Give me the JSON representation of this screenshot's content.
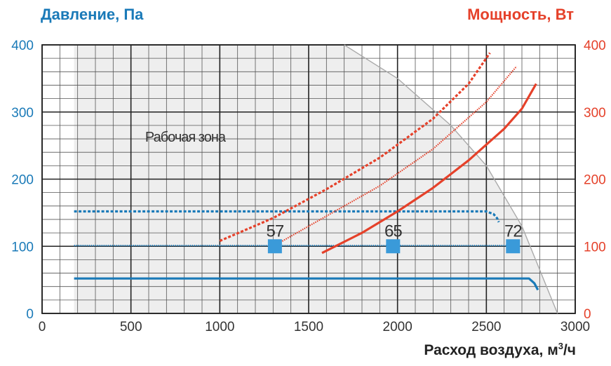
{
  "chart_data": {
    "type": "line",
    "ylabel_left": "Давление, Па",
    "ylabel_right": "Мощность, Вт",
    "xlabel": "Расход воздуха, м",
    "xlabel_sup": "3",
    "xlabel_suffix": "/ч",
    "xlim": [
      0,
      3000
    ],
    "ylim": [
      0,
      400
    ],
    "ylim_right": [
      0,
      400
    ],
    "x_ticks": [
      0,
      500,
      1000,
      1500,
      2000,
      2500,
      3000
    ],
    "y_ticks": [
      0,
      100,
      200,
      300,
      400
    ],
    "y2_ticks": [
      0,
      100,
      200,
      300,
      400
    ],
    "grid": true,
    "zone_label": "Рабочая зона",
    "colors": {
      "pressure": "#1a7ab8",
      "power": "#e5412a",
      "marker": "#3a9ad9",
      "grid": "#444444",
      "boundary": "#aaaaaa",
      "zone": "#eeeeee"
    },
    "boundary": {
      "name": "",
      "x": [
        1700,
        2000,
        2300,
        2500,
        2700,
        2900
      ],
      "y": [
        400,
        350,
        280,
        220,
        130,
        0
      ]
    },
    "series": [
      {
        "group": "pressure",
        "style": "solid",
        "x": [
          180,
          2500,
          2740,
          2770,
          2790
        ],
        "y": [
          52,
          52,
          52,
          45,
          35
        ]
      },
      {
        "group": "pressure",
        "style": "dotted",
        "x": [
          180,
          2600,
          2645
        ],
        "y": [
          101,
          101,
          101
        ]
      },
      {
        "group": "pressure",
        "style": "dashed",
        "x": [
          180,
          2500,
          2540,
          2560,
          2570
        ],
        "y": [
          152,
          152,
          148,
          142,
          136
        ]
      },
      {
        "group": "power",
        "style": "solid",
        "x": [
          1575,
          1800,
          2000,
          2200,
          2400,
          2600,
          2700,
          2780
        ],
        "y": [
          90,
          120,
          152,
          187,
          228,
          275,
          305,
          342
        ]
      },
      {
        "group": "power",
        "style": "dotted",
        "x": [
          1300,
          1600,
          1900,
          2200,
          2500,
          2670
        ],
        "y": [
          100,
          145,
          190,
          245,
          315,
          368
        ]
      },
      {
        "group": "power",
        "style": "dashed",
        "x": [
          1000,
          1300,
          1600,
          1900,
          2200,
          2400,
          2520
        ],
        "y": [
          108,
          142,
          185,
          232,
          290,
          342,
          388
        ]
      }
    ],
    "markers": [
      {
        "x": 1310,
        "y": 100,
        "label": "57"
      },
      {
        "x": 1975,
        "y": 100,
        "label": "65"
      },
      {
        "x": 2650,
        "y": 100,
        "label": "72"
      }
    ]
  }
}
